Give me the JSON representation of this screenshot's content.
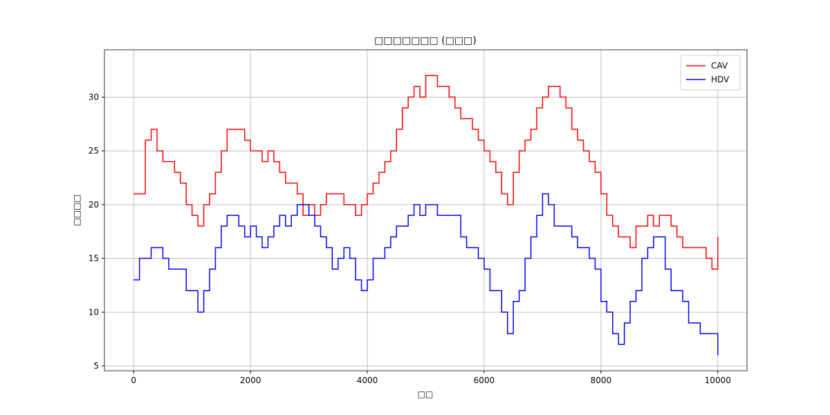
{
  "chart_data": {
    "type": "line",
    "step": "post",
    "title": "□□□□□□□ (□□□)",
    "xlabel": "□□",
    "ylabel": "□□□□",
    "x": [
      0,
      100,
      200,
      300,
      400,
      500,
      600,
      700,
      800,
      900,
      1000,
      1100,
      1200,
      1300,
      1400,
      1500,
      1600,
      1700,
      1800,
      1900,
      2000,
      2100,
      2200,
      2300,
      2400,
      2500,
      2600,
      2700,
      2800,
      2900,
      3000,
      3100,
      3200,
      3300,
      3400,
      3500,
      3600,
      3700,
      3800,
      3900,
      4000,
      4100,
      4200,
      4300,
      4400,
      4500,
      4600,
      4700,
      4800,
      4900,
      5000,
      5100,
      5200,
      5300,
      5400,
      5500,
      5600,
      5700,
      5800,
      5900,
      6000,
      6100,
      6200,
      6300,
      6400,
      6500,
      6600,
      6700,
      6800,
      6900,
      7000,
      7100,
      7200,
      7300,
      7400,
      7500,
      7600,
      7700,
      7800,
      7900,
      8000,
      8100,
      8200,
      8300,
      8400,
      8500,
      8600,
      8700,
      8800,
      8900,
      9000,
      9100,
      9200,
      9300,
      9400,
      9500,
      9600,
      9700,
      9800,
      9900,
      10000
    ],
    "series": [
      {
        "name": "CAV",
        "color": "#ff0000",
        "values": [
          21,
          21,
          26,
          27,
          25,
          24,
          24,
          23,
          22,
          20,
          19,
          18,
          20,
          21,
          23,
          25,
          27,
          27,
          27,
          26,
          25,
          25,
          24,
          25,
          24,
          23,
          22,
          22,
          21,
          19,
          20,
          19,
          20,
          21,
          21,
          21,
          20,
          20,
          19,
          20,
          21,
          22,
          23,
          24,
          25,
          27,
          29,
          30,
          31,
          30,
          32,
          32,
          31,
          31,
          30,
          29,
          28,
          28,
          27,
          26,
          25,
          24,
          23,
          21,
          20,
          23,
          25,
          26,
          27,
          29,
          30,
          31,
          31,
          30,
          29,
          27,
          26,
          25,
          24,
          23,
          21,
          19,
          18,
          17,
          17,
          16,
          18,
          18,
          19,
          18,
          19,
          19,
          18,
          17,
          16,
          16,
          16,
          16,
          15,
          14,
          17
        ]
      },
      {
        "name": "HDV",
        "color": "#0000ff",
        "values": [
          13,
          15,
          15,
          16,
          16,
          15,
          14,
          14,
          14,
          12,
          12,
          10,
          12,
          14,
          16,
          18,
          19,
          19,
          18,
          17,
          18,
          17,
          16,
          17,
          18,
          19,
          18,
          19,
          20,
          20,
          19,
          18,
          17,
          16,
          14,
          15,
          16,
          15,
          13,
          12,
          13,
          15,
          15,
          16,
          17,
          18,
          18,
          19,
          20,
          19,
          20,
          20,
          19,
          19,
          19,
          19,
          17,
          16,
          16,
          15,
          14,
          12,
          12,
          10,
          8,
          11,
          12,
          15,
          17,
          19,
          21,
          20,
          18,
          18,
          18,
          17,
          16,
          16,
          15,
          14,
          11,
          10,
          8,
          7,
          9,
          11,
          12,
          15,
          16,
          17,
          17,
          14,
          12,
          12,
          11,
          9,
          9,
          8,
          8,
          8,
          6
        ]
      }
    ],
    "xlim": [
      -500,
      10500
    ],
    "ylim": [
      4.55,
      34.4
    ],
    "xticks": [
      0,
      2000,
      4000,
      6000,
      8000,
      10000
    ],
    "yticks": [
      5,
      10,
      15,
      20,
      25,
      30
    ],
    "grid": true,
    "legend": "upper right"
  }
}
